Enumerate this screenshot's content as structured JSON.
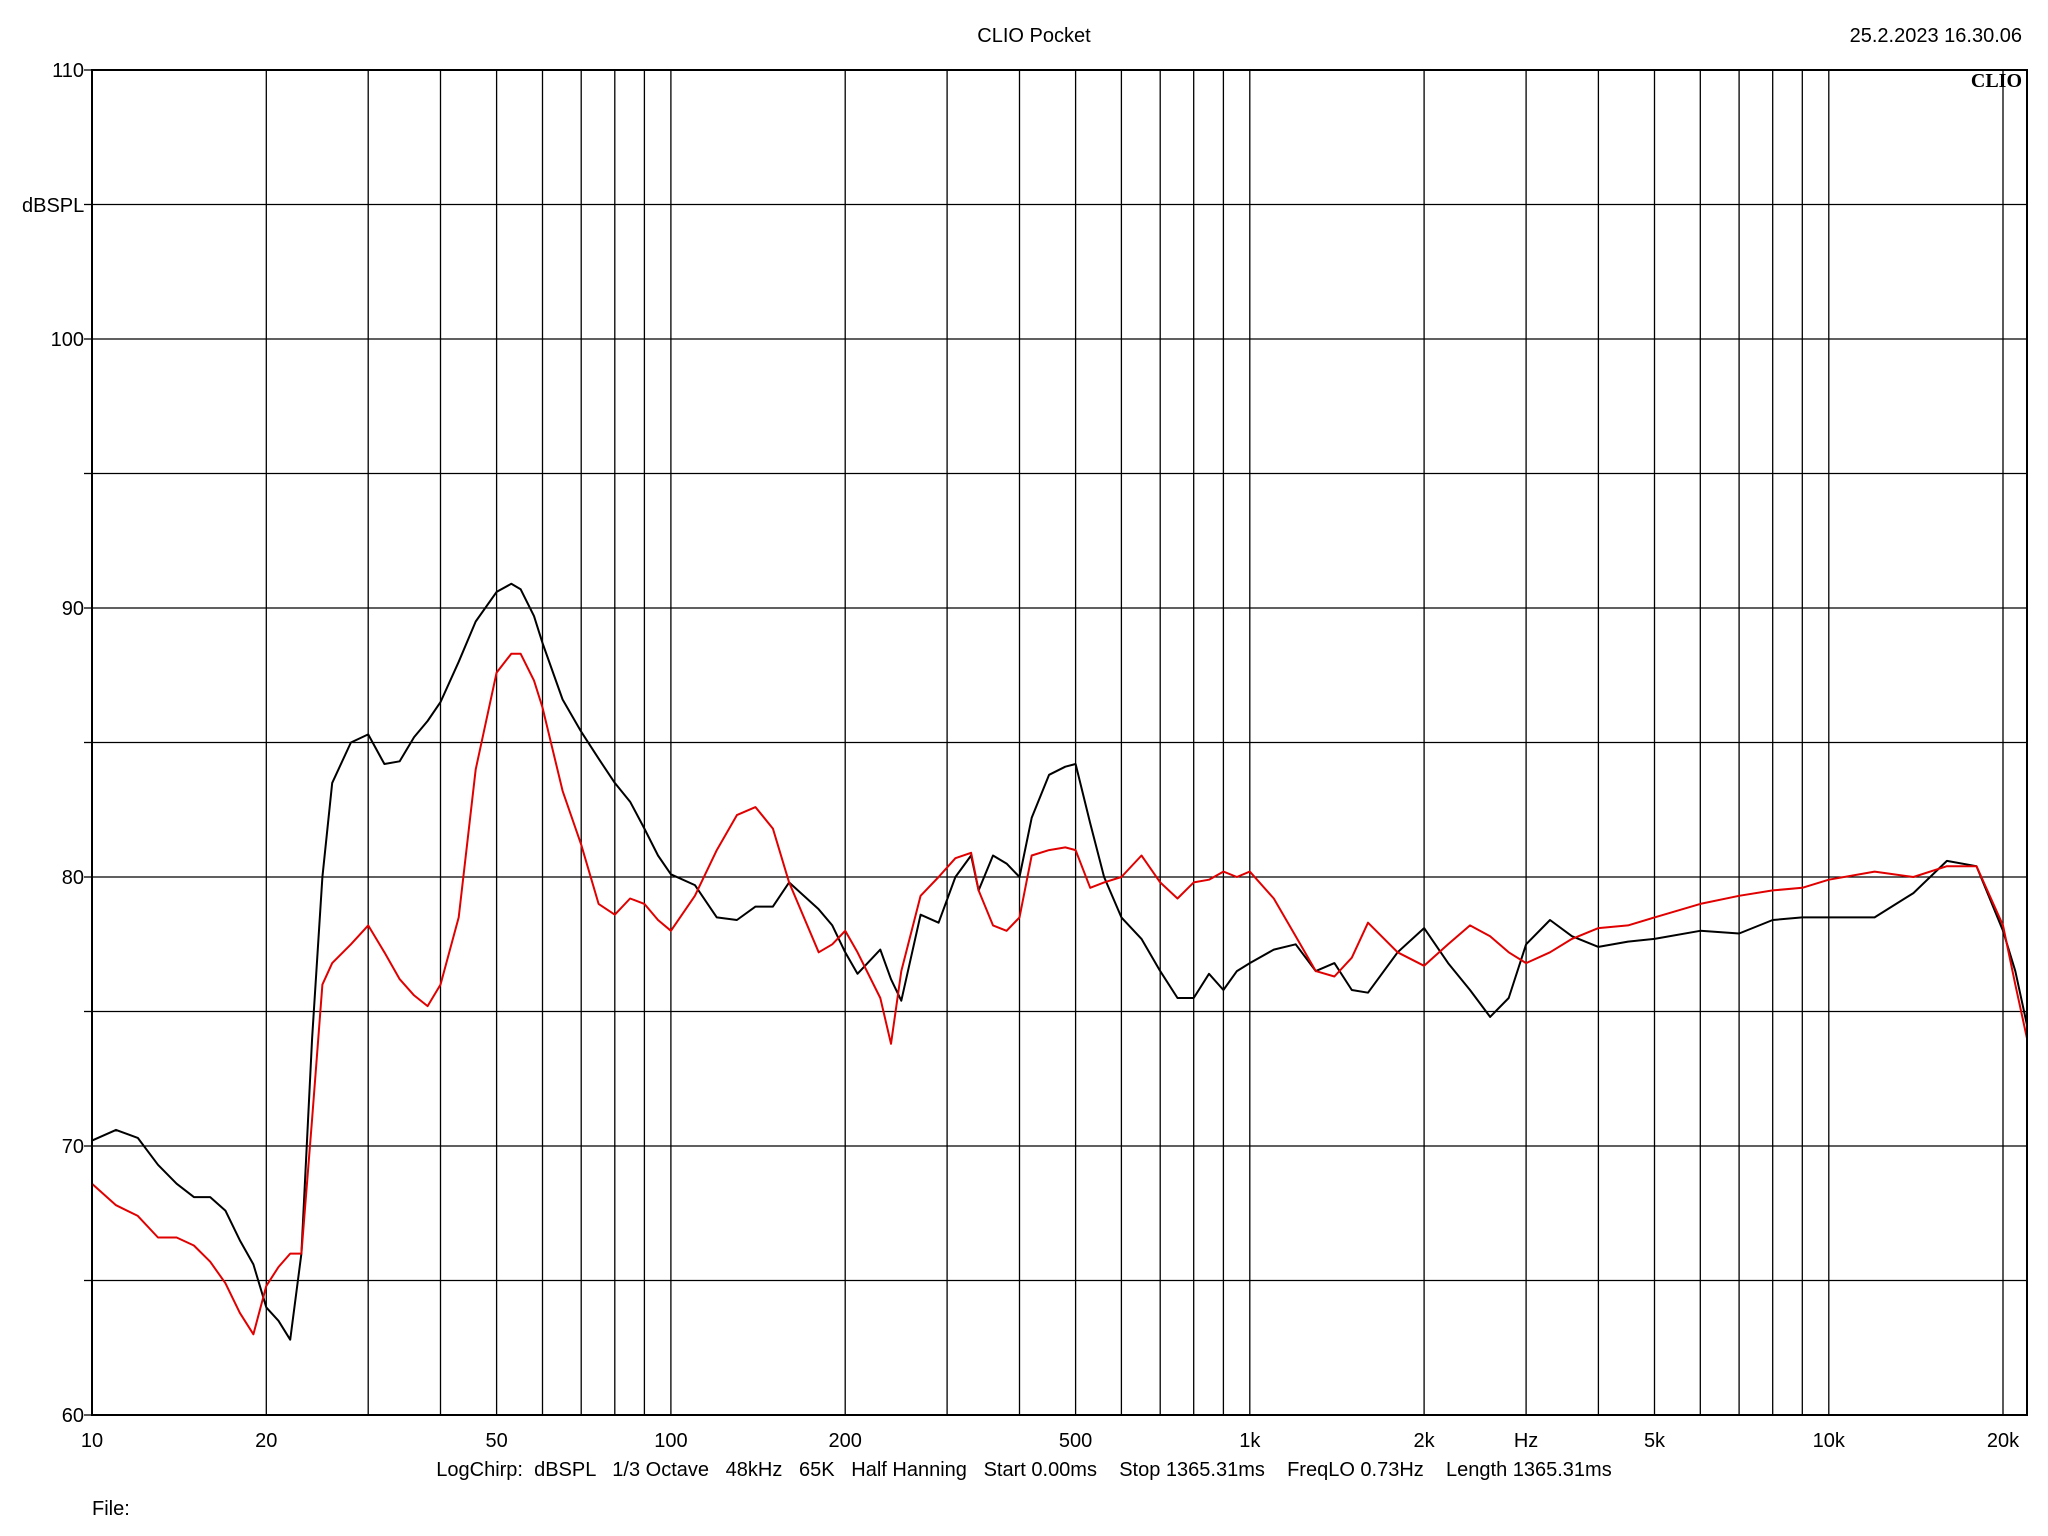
{
  "header": {
    "title": "CLIO Pocket",
    "timestamp": "25.2.2023 16.30.06",
    "logo": "CLIO"
  },
  "footer": {
    "settings": "LogChirp:  dBSPL   1/3 Octave   48kHz   65K   Half Hanning   Start 0.00ms    Stop 1365.31ms    FreqLO 0.73Hz    Length 1365.31ms",
    "file_label": "File:"
  },
  "chart_data": {
    "type": "line",
    "title": "CLIO Pocket",
    "xlabel": "Hz",
    "ylabel": "dBSPL",
    "x_scale": "log",
    "xlim": [
      10,
      22000
    ],
    "ylim": [
      60,
      110
    ],
    "grid": true,
    "x_ticks": [
      {
        "value": 10,
        "label": "10"
      },
      {
        "value": 20,
        "label": "20"
      },
      {
        "value": 50,
        "label": "50"
      },
      {
        "value": 100,
        "label": "100"
      },
      {
        "value": 200,
        "label": "200"
      },
      {
        "value": 500,
        "label": "500"
      },
      {
        "value": 1000,
        "label": "1k"
      },
      {
        "value": 2000,
        "label": "2k"
      },
      {
        "value": 3000,
        "label": "Hz"
      },
      {
        "value": 5000,
        "label": "5k"
      },
      {
        "value": 10000,
        "label": "10k"
      },
      {
        "value": 20000,
        "label": "20k"
      }
    ],
    "x_gridlines": [
      10,
      20,
      30,
      40,
      50,
      60,
      70,
      80,
      90,
      100,
      200,
      300,
      400,
      500,
      600,
      700,
      800,
      900,
      1000,
      2000,
      3000,
      4000,
      5000,
      6000,
      7000,
      8000,
      9000,
      10000,
      20000
    ],
    "y_ticks": [
      {
        "value": 60,
        "label": "60"
      },
      {
        "value": 70,
        "label": "70"
      },
      {
        "value": 80,
        "label": "80"
      },
      {
        "value": 90,
        "label": "90"
      },
      {
        "value": 100,
        "label": "100"
      },
      {
        "value": 110,
        "label": "110"
      }
    ],
    "y_gridlines": [
      60,
      65,
      70,
      75,
      80,
      85,
      90,
      95,
      100,
      105,
      110
    ],
    "series": [
      {
        "color": "#000000",
        "x": [
          10,
          11,
          12,
          13,
          14,
          15,
          16,
          17,
          18,
          19,
          20,
          21,
          22,
          23,
          24,
          25,
          26,
          28,
          30,
          32,
          34,
          36,
          38,
          40,
          43,
          46,
          50,
          53,
          55,
          58,
          60,
          65,
          70,
          75,
          80,
          85,
          90,
          95,
          100,
          110,
          120,
          130,
          140,
          150,
          160,
          180,
          190,
          200,
          210,
          230,
          240,
          250,
          270,
          290,
          310,
          330,
          340,
          360,
          380,
          400,
          420,
          450,
          480,
          500,
          530,
          560,
          600,
          650,
          700,
          750,
          800,
          850,
          900,
          950,
          1000,
          1100,
          1200,
          1300,
          1400,
          1500,
          1600,
          1800,
          2000,
          2200,
          2400,
          2600,
          2800,
          3000,
          3300,
          3600,
          4000,
          4500,
          5000,
          6000,
          7000,
          8000,
          9000,
          10000,
          12000,
          14000,
          16000,
          18000,
          20000,
          21000,
          22000
        ],
        "y": [
          70.2,
          70.6,
          70.3,
          69.3,
          68.6,
          68.1,
          68.1,
          67.6,
          66.5,
          65.6,
          64.0,
          63.5,
          62.8,
          66.0,
          74.0,
          80.0,
          83.5,
          85.0,
          85.3,
          84.2,
          84.3,
          85.2,
          85.8,
          86.5,
          88.0,
          89.5,
          90.6,
          90.9,
          90.7,
          89.7,
          88.7,
          86.6,
          85.4,
          84.4,
          83.5,
          82.8,
          81.8,
          80.8,
          80.1,
          79.7,
          78.5,
          78.4,
          78.9,
          78.9,
          79.8,
          78.8,
          78.2,
          77.2,
          76.4,
          77.3,
          76.2,
          75.4,
          78.6,
          78.3,
          80.0,
          80.8,
          79.5,
          80.8,
          80.5,
          80.0,
          82.2,
          83.8,
          84.1,
          84.2,
          82.0,
          80.0,
          78.5,
          77.7,
          76.5,
          75.5,
          75.5,
          76.4,
          75.8,
          76.5,
          76.8,
          77.3,
          77.5,
          76.5,
          76.8,
          75.8,
          75.7,
          77.2,
          78.1,
          76.8,
          75.8,
          74.8,
          75.5,
          77.5,
          78.4,
          77.8,
          77.4,
          77.6,
          77.7,
          78.0,
          77.9,
          78.4,
          78.5,
          78.5,
          78.5,
          79.4,
          80.6,
          80.4,
          78.0,
          76.5,
          74.5
        ]
      },
      {
        "color": "#e00000",
        "x": [
          10,
          11,
          12,
          13,
          14,
          15,
          16,
          17,
          18,
          19,
          20,
          21,
          22,
          23,
          24,
          25,
          26,
          28,
          30,
          32,
          34,
          36,
          38,
          40,
          43,
          46,
          50,
          53,
          55,
          58,
          60,
          65,
          70,
          75,
          80,
          85,
          90,
          95,
          100,
          110,
          120,
          130,
          140,
          150,
          160,
          180,
          190,
          200,
          210,
          230,
          240,
          250,
          270,
          290,
          310,
          330,
          340,
          360,
          380,
          400,
          420,
          450,
          480,
          500,
          530,
          560,
          600,
          650,
          700,
          750,
          800,
          850,
          900,
          950,
          1000,
          1100,
          1200,
          1300,
          1400,
          1500,
          1600,
          1800,
          2000,
          2200,
          2400,
          2600,
          2800,
          3000,
          3300,
          3600,
          4000,
          4500,
          5000,
          6000,
          7000,
          8000,
          9000,
          10000,
          12000,
          14000,
          16000,
          18000,
          20000,
          21000,
          22000
        ],
        "y": [
          68.6,
          67.8,
          67.4,
          66.6,
          66.6,
          66.3,
          65.7,
          64.9,
          63.8,
          63.0,
          64.8,
          65.5,
          66.0,
          66.0,
          71.0,
          76.0,
          76.8,
          77.5,
          78.2,
          77.2,
          76.2,
          75.6,
          75.2,
          76.0,
          78.5,
          84.0,
          87.6,
          88.3,
          88.3,
          87.3,
          86.3,
          83.2,
          81.2,
          79.0,
          78.6,
          79.2,
          79.0,
          78.4,
          78.0,
          79.3,
          81.0,
          82.3,
          82.6,
          81.8,
          79.8,
          77.2,
          77.5,
          78.0,
          77.2,
          75.5,
          73.8,
          76.5,
          79.3,
          80.0,
          80.7,
          80.9,
          79.5,
          78.2,
          78.0,
          78.5,
          80.8,
          81.0,
          81.1,
          81.0,
          79.6,
          79.8,
          80.0,
          80.8,
          79.8,
          79.2,
          79.8,
          79.9,
          80.2,
          80.0,
          80.2,
          79.2,
          77.8,
          76.5,
          76.3,
          77.0,
          78.3,
          77.2,
          76.7,
          77.5,
          78.2,
          77.8,
          77.2,
          76.8,
          77.2,
          77.7,
          78.1,
          78.2,
          78.5,
          79.0,
          79.3,
          79.5,
          79.6,
          79.9,
          80.2,
          80.0,
          80.4,
          80.4,
          78.2,
          76.0,
          74.0
        ]
      }
    ]
  }
}
